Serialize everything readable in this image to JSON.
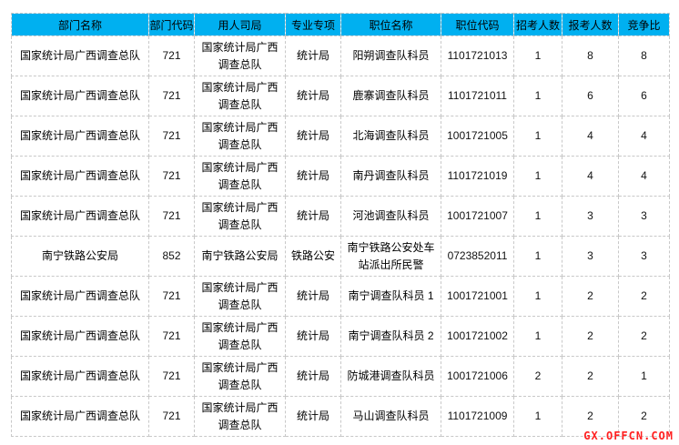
{
  "headers": [
    "部门名称",
    "部门代码",
    "用人司局",
    "专业专项",
    "职位名称",
    "职位代码",
    "招考人数",
    "报考人数",
    "竞争比"
  ],
  "rows": [
    [
      "国家统计局广西调查总队",
      "721",
      "国家统计局广西调查总队",
      "统计局",
      "阳朔调查队科员",
      "1101721013",
      "1",
      "8",
      "8"
    ],
    [
      "国家统计局广西调查总队",
      "721",
      "国家统计局广西调查总队",
      "统计局",
      "鹿寨调查队科员",
      "1101721011",
      "1",
      "6",
      "6"
    ],
    [
      "国家统计局广西调查总队",
      "721",
      "国家统计局广西调查总队",
      "统计局",
      "北海调查队科员",
      "1001721005",
      "1",
      "4",
      "4"
    ],
    [
      "国家统计局广西调查总队",
      "721",
      "国家统计局广西调查总队",
      "统计局",
      "南丹调查队科员",
      "1101721019",
      "1",
      "4",
      "4"
    ],
    [
      "国家统计局广西调查总队",
      "721",
      "国家统计局广西调查总队",
      "统计局",
      "河池调查队科员",
      "1001721007",
      "1",
      "3",
      "3"
    ],
    [
      "南宁铁路公安局",
      "852",
      "南宁铁路公安局",
      "铁路公安",
      "南宁铁路公安处车站派出所民警",
      "0723852011",
      "1",
      "3",
      "3"
    ],
    [
      "国家统计局广西调查总队",
      "721",
      "国家统计局广西调查总队",
      "统计局",
      "南宁调查队科员 1",
      "1001721001",
      "1",
      "2",
      "2"
    ],
    [
      "国家统计局广西调查总队",
      "721",
      "国家统计局广西调查总队",
      "统计局",
      "南宁调查队科员 2",
      "1001721002",
      "1",
      "2",
      "2"
    ],
    [
      "国家统计局广西调查总队",
      "721",
      "国家统计局广西调查总队",
      "统计局",
      "防城港调查队科员",
      "1001721006",
      "2",
      "2",
      "1"
    ],
    [
      "国家统计局广西调查总队",
      "721",
      "国家统计局广西调查总队",
      "统计局",
      "马山调查队科员",
      "1101721009",
      "1",
      "2",
      "2"
    ]
  ],
  "watermark": "GX.OFFCN.COM",
  "colors": {
    "header_bg": "#00b0f0",
    "watermark": "#ff2020"
  }
}
